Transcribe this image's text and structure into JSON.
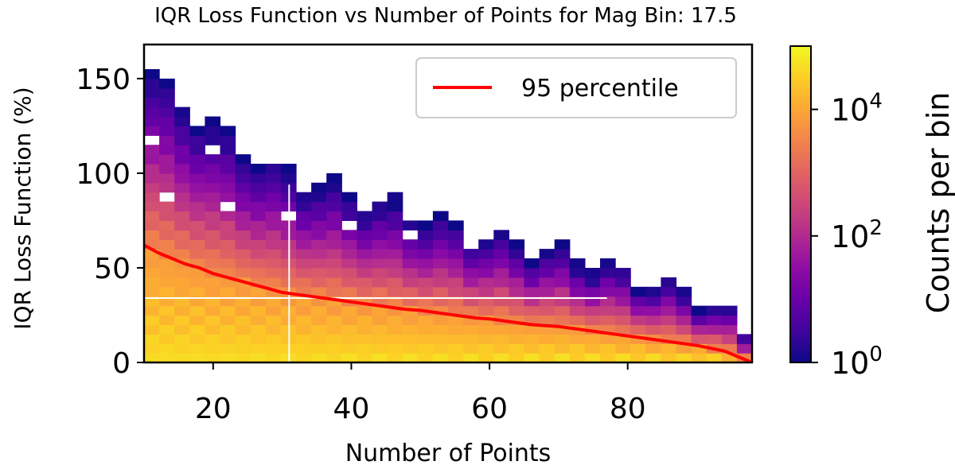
{
  "chart_data": {
    "type": "heatmap",
    "title": "IQR Loss Function vs Number of Points for Mag Bin: 17.5",
    "xlabel": "Number of Points",
    "ylabel": "IQR Loss Function (%)",
    "xlim": [
      10,
      98
    ],
    "ylim": [
      0,
      168
    ],
    "x_ticks": [
      "20",
      "40",
      "60",
      "80"
    ],
    "y_ticks": [
      "0",
      "50",
      "100",
      "150"
    ],
    "x_tick_values": [
      20,
      40,
      60,
      80
    ],
    "y_tick_values": [
      0,
      50,
      100,
      150
    ],
    "x_bins": {
      "start": 10,
      "width": 2.2,
      "count": 40
    },
    "y_bin_width": 5,
    "colormap": "plasma",
    "color_scale": "log",
    "colorbar": {
      "label": "Counts per bin",
      "ticks": [
        {
          "value": 1,
          "base": "10",
          "exp": "0"
        },
        {
          "value": 100,
          "base": "10",
          "exp": "2"
        },
        {
          "value": 10000,
          "base": "10",
          "exp": "4"
        }
      ],
      "range": [
        1,
        100000
      ]
    },
    "legend": {
      "placement": "top-right",
      "entries": [
        {
          "label": "95 percentile",
          "color": "#ff0000"
        }
      ]
    },
    "series": [
      {
        "name": "95 percentile",
        "color": "#ff0000",
        "x": [
          10,
          12,
          14,
          16,
          18,
          20,
          22,
          24,
          26,
          28,
          30,
          32,
          34,
          36,
          38,
          40,
          42,
          44,
          46,
          48,
          50,
          52,
          54,
          56,
          58,
          60,
          62,
          64,
          66,
          68,
          70,
          72,
          74,
          76,
          78,
          80,
          82,
          84,
          86,
          88,
          90,
          92,
          94,
          96,
          98
        ],
        "y": [
          62,
          58,
          55,
          52,
          50,
          47,
          45,
          43,
          41,
          39,
          37,
          36,
          35,
          34,
          33,
          32,
          31,
          30,
          29,
          28,
          27.5,
          26.5,
          25.5,
          24.5,
          23.5,
          23,
          22,
          21,
          20,
          19.5,
          19,
          18,
          17,
          16,
          15,
          14,
          13,
          12,
          11,
          10,
          9,
          7.5,
          6,
          3,
          0
        ]
      }
    ],
    "crosshair": {
      "x": 31,
      "y": 34
    }
  }
}
